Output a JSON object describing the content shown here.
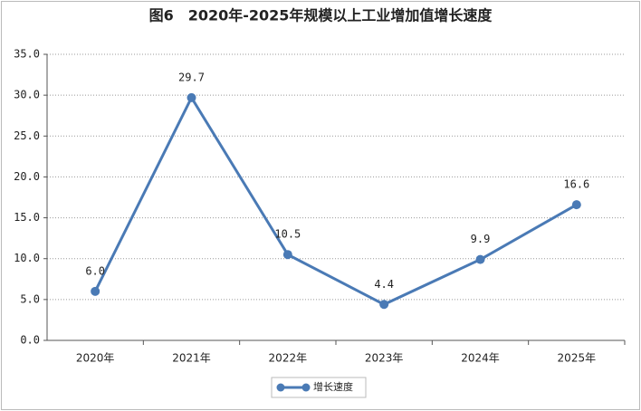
{
  "chart_data": {
    "type": "line",
    "title": "图6　2020年-2025年规模以上工业增加值增长速度",
    "categories": [
      "2020年",
      "2021年",
      "2022年",
      "2023年",
      "2024年",
      "2025年"
    ],
    "series": [
      {
        "name": "增长速度",
        "color": "#4a7ab5",
        "values": [
          6.0,
          29.7,
          10.5,
          4.4,
          9.9,
          16.6
        ],
        "value_labels": [
          "6.0",
          "29.7",
          "10.5",
          "4.4",
          "9.9",
          "16.6"
        ]
      }
    ],
    "ylim": [
      0,
      35
    ],
    "yticks": [
      {
        "value": 0,
        "label": "0.0"
      },
      {
        "value": 5,
        "label": "5.0"
      },
      {
        "value": 10,
        "label": "10.0"
      },
      {
        "value": 15,
        "label": "15.0"
      },
      {
        "value": 20,
        "label": "20.0"
      },
      {
        "value": 25,
        "label": "25.0"
      },
      {
        "value": 30,
        "label": "30.0"
      },
      {
        "value": 35,
        "label": "35.0"
      }
    ],
    "grid": true,
    "legend": "bottom"
  }
}
